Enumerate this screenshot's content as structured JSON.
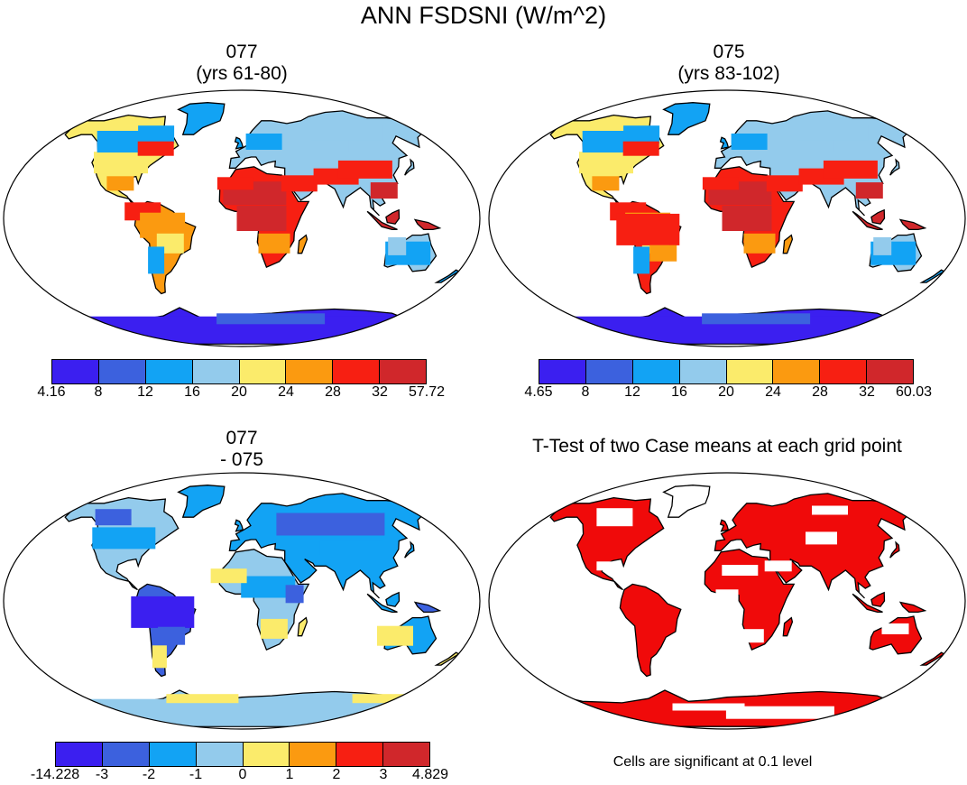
{
  "figure": {
    "title": "ANN FSDSNI (W/m^2)"
  },
  "panels": {
    "top_left": {
      "title_line1": "077",
      "title_line2": "(yrs 61-80)"
    },
    "top_right": {
      "title_line1": "075",
      "title_line2": "(yrs 83-102)"
    },
    "bottom_left": {
      "title_line1": "077",
      "title_line2": "- 075"
    },
    "bottom_right": {
      "title": "T-Test of two Case means at each grid point",
      "note": "Cells are significant at 0.1 level"
    }
  },
  "colorbars": {
    "top_left": {
      "labels": [
        "4.16",
        "8",
        "12",
        "16",
        "20",
        "24",
        "28",
        "32",
        "57.72"
      ],
      "colors": [
        "#3b1ff0",
        "#3c61de",
        "#12a3f4",
        "#93cbec",
        "#fbeb6b",
        "#fb9a10",
        "#f71f12",
        "#d0272b"
      ]
    },
    "top_right": {
      "labels": [
        "4.65",
        "8",
        "12",
        "16",
        "20",
        "24",
        "28",
        "32",
        "60.03"
      ],
      "colors": [
        "#3b1ff0",
        "#3c61de",
        "#12a3f4",
        "#93cbec",
        "#fbeb6b",
        "#fb9a10",
        "#f71f12",
        "#d0272b"
      ]
    },
    "bottom_left": {
      "labels": [
        "-14.228",
        "-3",
        "-2",
        "-1",
        "0",
        "1",
        "2",
        "3",
        "4.829"
      ],
      "colors": [
        "#3b1ff0",
        "#3c61de",
        "#12a3f4",
        "#93cbec",
        "#fbeb6b",
        "#fb9a10",
        "#f71f12",
        "#d0272b"
      ]
    }
  },
  "significance_color": "#f00a0a"
}
